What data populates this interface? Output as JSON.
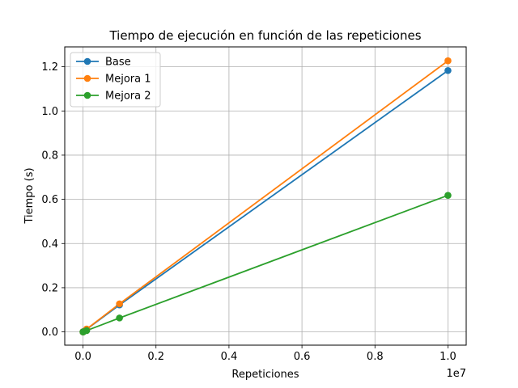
{
  "chart_data": {
    "type": "line",
    "title": "Tiempo de ejecución en función de las repeticiones",
    "xlabel": "Repeticiones",
    "ylabel": "Tiempo (s)",
    "x_offset_label": "1e7",
    "xlim": [
      -500000,
      10500000
    ],
    "ylim": [
      -0.06,
      1.29
    ],
    "x_ticks": [
      0,
      2000000,
      4000000,
      6000000,
      8000000,
      10000000
    ],
    "x_tick_labels": [
      "0.0",
      "0.2",
      "0.4",
      "0.6",
      "0.8",
      "1.0"
    ],
    "y_ticks": [
      0.0,
      0.2,
      0.4,
      0.6,
      0.8,
      1.0,
      1.2
    ],
    "y_tick_labels": [
      "0.0",
      "0.2",
      "0.4",
      "0.6",
      "0.8",
      "1.0",
      "1.2"
    ],
    "grid": true,
    "legend_position": "top-left",
    "x": [
      1000,
      10000,
      100000,
      1000000,
      10000000
    ],
    "series": [
      {
        "name": "Base",
        "color": "#1f77b4",
        "values": [
          0.0001,
          0.0012,
          0.012,
          0.122,
          1.183
        ]
      },
      {
        "name": "Mejora 1",
        "color": "#ff7f0e",
        "values": [
          0.0001,
          0.0013,
          0.013,
          0.127,
          1.227
        ]
      },
      {
        "name": "Mejora 2",
        "color": "#2ca02c",
        "values": [
          0.0001,
          0.0006,
          0.006,
          0.063,
          0.618
        ]
      }
    ]
  }
}
